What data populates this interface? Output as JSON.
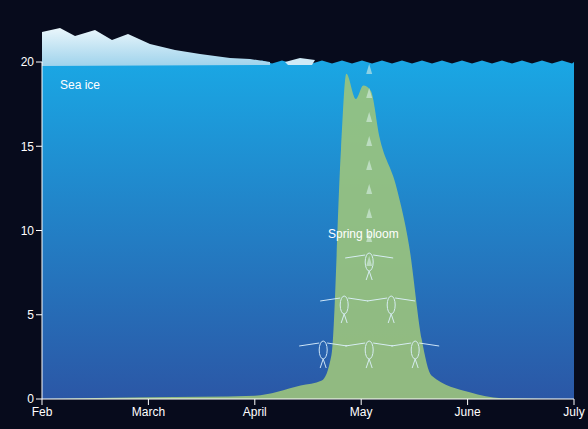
{
  "chart_data": {
    "type": "area",
    "annotations": [
      "Sea ice",
      "Spring bloom"
    ],
    "x": [
      2,
      3,
      4,
      4.43,
      4.63,
      4.72,
      4.81,
      4.86,
      4.95,
      5.02,
      5.09,
      5.17,
      5.33,
      5.45,
      5.57,
      5.66,
      6.02,
      6.32,
      7
    ],
    "values": [
      0,
      0.1,
      0.2,
      0.8,
      1.1,
      2.6,
      14.8,
      19.3,
      17.8,
      18.6,
      18.3,
      15.6,
      12.6,
      9.1,
      3.5,
      1.4,
      0.4,
      0.05,
      0
    ],
    "color": "#9cc47c",
    "xlim": [
      2,
      7
    ],
    "xticks": [
      {
        "value": 2,
        "label": "Feb"
      },
      {
        "value": 3,
        "label": "March"
      },
      {
        "value": 4,
        "label": "April"
      },
      {
        "value": 5,
        "label": "May"
      },
      {
        "value": 6,
        "label": "June"
      },
      {
        "value": 7,
        "label": "July"
      }
    ],
    "ylim": [
      0,
      20
    ],
    "yticks": [
      0,
      5,
      10,
      15,
      20
    ]
  }
}
